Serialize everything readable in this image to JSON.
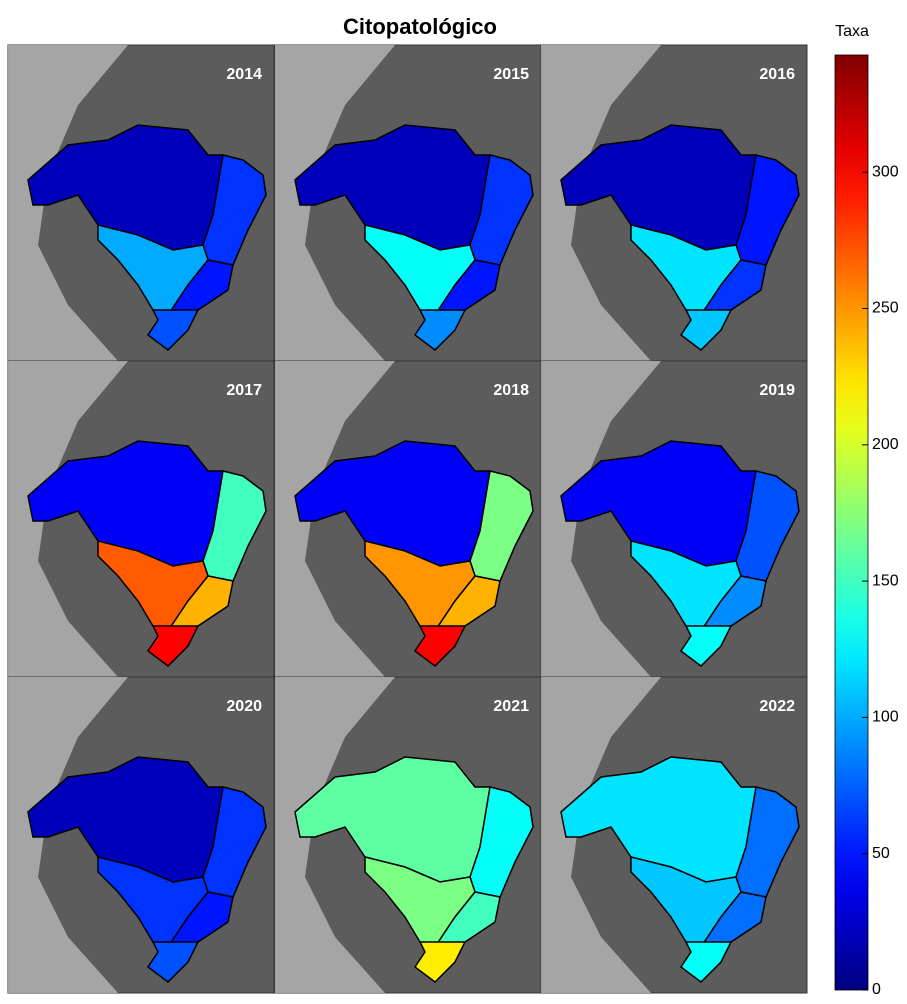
{
  "chart_data": {
    "type": "choropleth",
    "title": "Citopatológico",
    "colorbar_label": "Taxa",
    "colormap": "jet",
    "clim": [
      0,
      343
    ],
    "ticks": [
      0,
      50,
      100,
      150,
      200,
      250,
      300
    ],
    "panels": [
      {
        "year": "2014",
        "values": [
          20,
          60,
          100,
          50,
          70
        ]
      },
      {
        "year": "2015",
        "values": [
          20,
          60,
          130,
          50,
          90
        ]
      },
      {
        "year": "2016",
        "values": [
          20,
          50,
          120,
          60,
          110
        ]
      },
      {
        "year": "2017",
        "values": [
          40,
          150,
          270,
          240,
          300
        ]
      },
      {
        "year": "2018",
        "values": [
          40,
          170,
          250,
          240,
          300
        ]
      },
      {
        "year": "2019",
        "values": [
          40,
          70,
          120,
          90,
          130
        ]
      },
      {
        "year": "2020",
        "values": [
          20,
          60,
          60,
          50,
          70
        ]
      },
      {
        "year": "2021",
        "values": [
          160,
          130,
          170,
          150,
          220
        ]
      },
      {
        "year": "2022",
        "values": [
          120,
          80,
          110,
          80,
          130
        ]
      }
    ]
  }
}
